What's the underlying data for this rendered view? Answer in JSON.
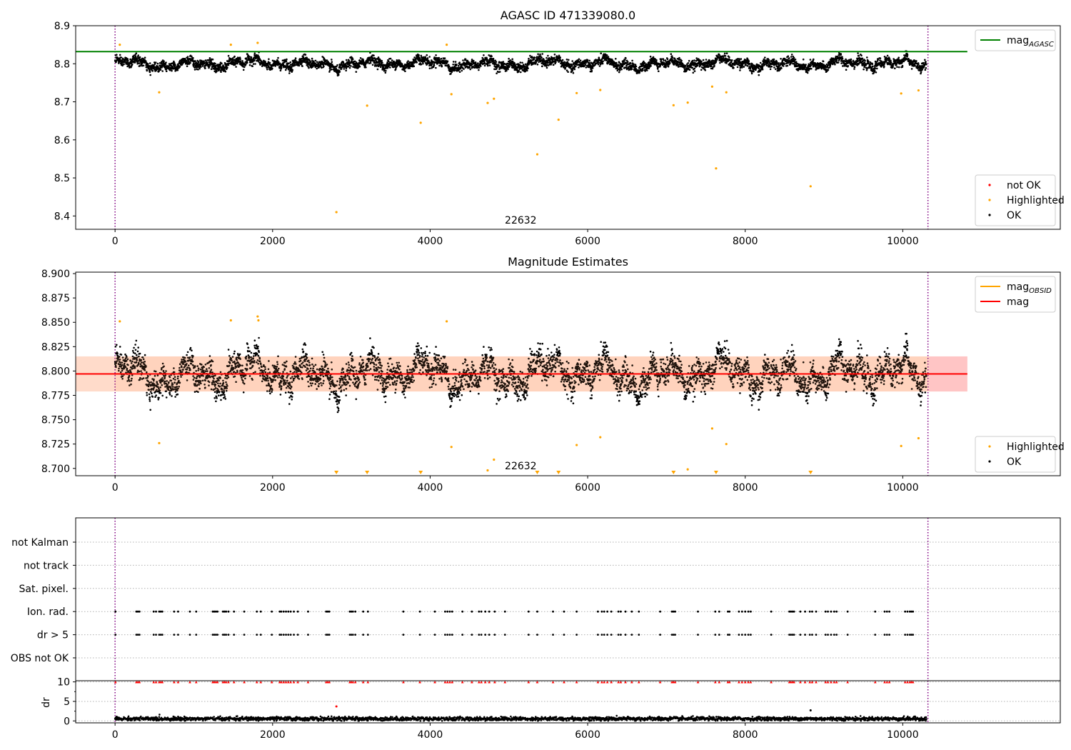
{
  "chart_data": [
    {
      "id": "mag-agasc",
      "type": "scatter",
      "title": "AGASC ID 471339080.0",
      "xlim": [
        -500,
        12000
      ],
      "ylim": [
        8.365,
        8.9
      ],
      "xticks": [
        0,
        2000,
        4000,
        6000,
        8000,
        10000
      ],
      "yticks": [
        8.4,
        8.5,
        8.6,
        8.7,
        8.8,
        8.9
      ],
      "ytick_labels": [
        "8.4",
        "8.5",
        "8.6",
        "8.7",
        "8.8",
        "8.9"
      ],
      "obsid_label": "22632",
      "obsid_label_x": 5150,
      "obs_boundaries": [
        0,
        10320
      ],
      "mag_agasc": 8.832,
      "mag_line_xmax": 10820,
      "ok_band": {
        "center": 8.8,
        "spread": 0.012
      },
      "highlighted": [
        {
          "x": 60,
          "y": 8.85
        },
        {
          "x": 560,
          "y": 8.725
        },
        {
          "x": 1470,
          "y": 8.85
        },
        {
          "x": 1810,
          "y": 8.855
        },
        {
          "x": 2810,
          "y": 8.41
        },
        {
          "x": 3200,
          "y": 8.69
        },
        {
          "x": 3880,
          "y": 8.645
        },
        {
          "x": 4210,
          "y": 8.85
        },
        {
          "x": 4270,
          "y": 8.72
        },
        {
          "x": 4730,
          "y": 8.697
        },
        {
          "x": 4810,
          "y": 8.708
        },
        {
          "x": 5360,
          "y": 8.562
        },
        {
          "x": 5630,
          "y": 8.653
        },
        {
          "x": 5860,
          "y": 8.723
        },
        {
          "x": 6160,
          "y": 8.731
        },
        {
          "x": 7090,
          "y": 8.691
        },
        {
          "x": 7270,
          "y": 8.698
        },
        {
          "x": 7580,
          "y": 8.74
        },
        {
          "x": 7630,
          "y": 8.525
        },
        {
          "x": 7760,
          "y": 8.725
        },
        {
          "x": 8830,
          "y": 8.478
        },
        {
          "x": 9980,
          "y": 8.722
        },
        {
          "x": 10200,
          "y": 8.73
        }
      ],
      "legends": [
        {
          "entries": [
            {
              "label": "mag",
              "sub": "AGASC",
              "marker": "line",
              "color": "#008000"
            }
          ]
        },
        {
          "entries": [
            {
              "label": "not OK",
              "marker": "dot",
              "color": "#ff0000"
            },
            {
              "label": "Highlighted",
              "marker": "dot",
              "color": "#ffa500"
            },
            {
              "label": "OK",
              "marker": "dot",
              "color": "#000000"
            }
          ]
        }
      ]
    },
    {
      "id": "mag-estimates",
      "type": "scatter",
      "title": "Magnitude Estimates",
      "xlim": [
        -500,
        12000
      ],
      "ylim": [
        8.6925,
        8.9015
      ],
      "xticks": [
        0,
        2000,
        4000,
        6000,
        8000,
        10000
      ],
      "yticks": [
        8.7,
        8.725,
        8.75,
        8.775,
        8.8,
        8.825,
        8.85,
        8.875,
        8.9
      ],
      "ytick_labels": [
        "8.700",
        "8.725",
        "8.750",
        "8.775",
        "8.800",
        "8.825",
        "8.850",
        "8.875",
        "8.900"
      ],
      "obsid_label": "22632",
      "obsid_label_x": 5150,
      "obs_boundaries": [
        0,
        10320
      ],
      "mag": 8.797,
      "mag_band": [
        8.779,
        8.815
      ],
      "mag_line_xmax": 10820,
      "ok_band": {
        "center": 8.797,
        "spread": 0.016
      },
      "highlighted": [
        {
          "x": 60,
          "y": 8.851
        },
        {
          "x": 560,
          "y": 8.726
        },
        {
          "x": 1470,
          "y": 8.852
        },
        {
          "x": 1810,
          "y": 8.856
        },
        {
          "x": 1820,
          "y": 8.852
        },
        {
          "x": 4210,
          "y": 8.851
        },
        {
          "x": 4270,
          "y": 8.722
        },
        {
          "x": 4730,
          "y": 8.698
        },
        {
          "x": 4810,
          "y": 8.709
        },
        {
          "x": 5860,
          "y": 8.724
        },
        {
          "x": 6160,
          "y": 8.732
        },
        {
          "x": 7270,
          "y": 8.699
        },
        {
          "x": 7580,
          "y": 8.741
        },
        {
          "x": 7760,
          "y": 8.725
        },
        {
          "x": 9980,
          "y": 8.723
        },
        {
          "x": 10200,
          "y": 8.731
        }
      ],
      "below_range": [
        2810,
        3200,
        3880,
        5360,
        5630,
        7090,
        7630,
        8830
      ],
      "legends": [
        {
          "entries": [
            {
              "label": "mag",
              "sub": "OBSID",
              "marker": "line",
              "color": "#ffa500"
            },
            {
              "label": "mag",
              "marker": "line",
              "color": "#ff0000"
            }
          ]
        },
        {
          "entries": [
            {
              "label": "Highlighted",
              "marker": "dot",
              "color": "#ffa500"
            },
            {
              "label": "OK",
              "marker": "dot",
              "color": "#000000"
            }
          ]
        }
      ]
    },
    {
      "id": "flags",
      "type": "scatter",
      "xlim": [
        -500,
        12000
      ],
      "ylim": [
        -0.5,
        6.5
      ],
      "categories": [
        "not Kalman",
        "not track",
        "Sat. pixel.",
        "Ion. rad.",
        "dr > 5",
        "OBS not OK"
      ],
      "obs_boundaries": [
        0,
        10320
      ],
      "flag_times": [
        5,
        270,
        290,
        310,
        490,
        520,
        560,
        580,
        600,
        750,
        800,
        950,
        1030,
        1240,
        1260,
        1280,
        1300,
        1370,
        1390,
        1410,
        1440,
        1510,
        1640,
        1800,
        1850,
        1990,
        2090,
        2110,
        2140,
        2170,
        2200,
        2230,
        2270,
        2320,
        2450,
        2680,
        2700,
        2720,
        2980,
        3000,
        3020,
        3050,
        3150,
        3210,
        3660,
        3870,
        4060,
        4190,
        4220,
        4250,
        4280,
        4410,
        4530,
        4620,
        4650,
        4700,
        4750,
        4820,
        4950,
        5250,
        5360,
        5560,
        5700,
        5860,
        6130,
        6180,
        6210,
        6250,
        6300,
        6390,
        6420,
        6480,
        6560,
        6650,
        6920,
        7070,
        7090,
        7110,
        7400,
        7620,
        7670,
        7780,
        7800,
        7920,
        7960,
        8000,
        8040,
        8070,
        8330,
        8560,
        8580,
        8600,
        8620,
        8700,
        8760,
        8820,
        8850,
        8900,
        9020,
        9050,
        9090,
        9130,
        9160,
        9300,
        9650,
        9770,
        9800,
        9830,
        10030,
        10060,
        10090,
        10110,
        10130
      ]
    },
    {
      "id": "dr",
      "type": "scatter",
      "ylabel": "dr",
      "xlim": [
        -500,
        12000
      ],
      "ylim": [
        -0.5,
        10.3
      ],
      "xticks": [
        0,
        2000,
        4000,
        6000,
        8000,
        10000
      ],
      "yticks": [
        0,
        5,
        10
      ],
      "ytick_labels": [
        "0",
        "5",
        "10"
      ],
      "obs_boundaries": [
        0,
        10320
      ],
      "outliers": [
        {
          "x": 2810,
          "y": 3.7,
          "color": "#ff0000"
        },
        {
          "x": 8830,
          "y": 2.7,
          "color": "#000000"
        }
      ],
      "capped_value": 10
    }
  ],
  "colors": {
    "ok": "#000000",
    "highlighted": "#ffa500",
    "not_ok": "#ff0000",
    "mag_agasc": "#008000",
    "mag": "#ff0000",
    "mag_obsid": "#ffa500",
    "obs_boundary": "#800080"
  }
}
